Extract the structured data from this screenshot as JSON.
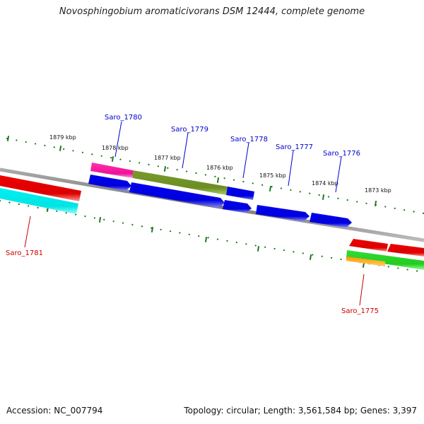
{
  "header": {
    "title": "Novosphingobium aromaticivorans DSM 12444, complete genome"
  },
  "footer": {
    "accession": "Accession: NC_007794",
    "topology": "Topology: circular; Length: 3,561,584 bp; Genes: 3,397"
  },
  "scale_labels": {
    "kbp_1879": "1879 kbp",
    "kbp_1878": "1878 kbp",
    "kbp_1877": "1877 kbp",
    "kbp_1876": "1876 kbp",
    "kbp_1875": "1875 kbp",
    "kbp_1874": "1874 kbp",
    "kbp_1873": "1873 kbp"
  },
  "gene_labels": {
    "saro_1780": "Saro_1780",
    "saro_1779": "Saro_1779",
    "saro_1778": "Saro_1778",
    "saro_1777": "Saro_1777",
    "saro_1776": "Saro_1776",
    "saro_1781": "Saro_1781",
    "saro_1775": "Saro_1775"
  },
  "colors": {
    "backbone": "#888888",
    "scale_tick": "#1e7a1e",
    "label_blue": "#0000cc",
    "label_red": "#cc0000",
    "gene_blue": "#0000ee",
    "gene_red": "#ee0000",
    "gene_cyan": "#00eeee",
    "gene_magenta": "#ee1199",
    "gene_olive": "#6b8e23",
    "gene_green": "#33cc33",
    "gene_orange": "#ff8800"
  }
}
